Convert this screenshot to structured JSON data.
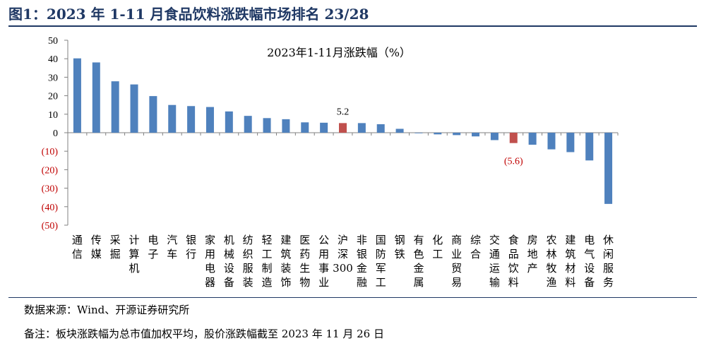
{
  "header": {
    "title": "图1：2023 年 1-11 月食品饮料涨跌幅市场排名 23/28"
  },
  "footer": {
    "source": "数据来源：Wind、开源证券研究所",
    "note": "备注：板块涨跌幅为总市值加权平均，股价涨跌幅截至 2023 年 11 月 26 日"
  },
  "colors": {
    "bar": "#4f81bd",
    "highlight": "#c0504d",
    "negative_tick": "#c00000"
  },
  "chart_data": {
    "type": "bar",
    "title": "2023年1-11月涨跌幅（%）",
    "xlabel": "",
    "ylabel": "",
    "ylim": [
      -50,
      50
    ],
    "yticks": [
      50,
      40,
      30,
      20,
      10,
      0,
      -10,
      -20,
      -30,
      -40,
      -50
    ],
    "ytick_labels": [
      "50",
      "40",
      "30",
      "20",
      "10",
      "0",
      "(10)",
      "(20)",
      "(30)",
      "(40)",
      "(50)"
    ],
    "grid": false,
    "categories": [
      "通信",
      "传媒",
      "采掘",
      "计算机",
      "电子",
      "汽车",
      "银行",
      "家用电器",
      "机械设备",
      "纺织服装",
      "轻工制造",
      "建筑装饰",
      "医药生物",
      "公用事业",
      "沪深300",
      "非银金融",
      "国防军工",
      "钢铁",
      "有色金属",
      "化工",
      "商业贸易",
      "综合",
      "交通运输",
      "食品饮料",
      "房地产",
      "农林牧渔",
      "建筑材料",
      "电气设备",
      "休闲服务"
    ],
    "values": [
      40.2,
      38.0,
      27.8,
      26.1,
      19.8,
      15.0,
      14.4,
      13.9,
      11.5,
      9.1,
      7.9,
      7.3,
      5.6,
      5.4,
      5.2,
      5.2,
      4.6,
      2.1,
      -0.3,
      -0.9,
      -1.3,
      -2.0,
      -4.0,
      -5.6,
      -6.5,
      -9.0,
      -10.5,
      -15.0,
      -38.5
    ],
    "highlight": [
      "沪深300",
      "食品饮料"
    ],
    "data_labels": [
      {
        "category": "沪深300",
        "text": "5.2"
      },
      {
        "category": "食品饮料",
        "text": "(5.6)"
      }
    ]
  }
}
